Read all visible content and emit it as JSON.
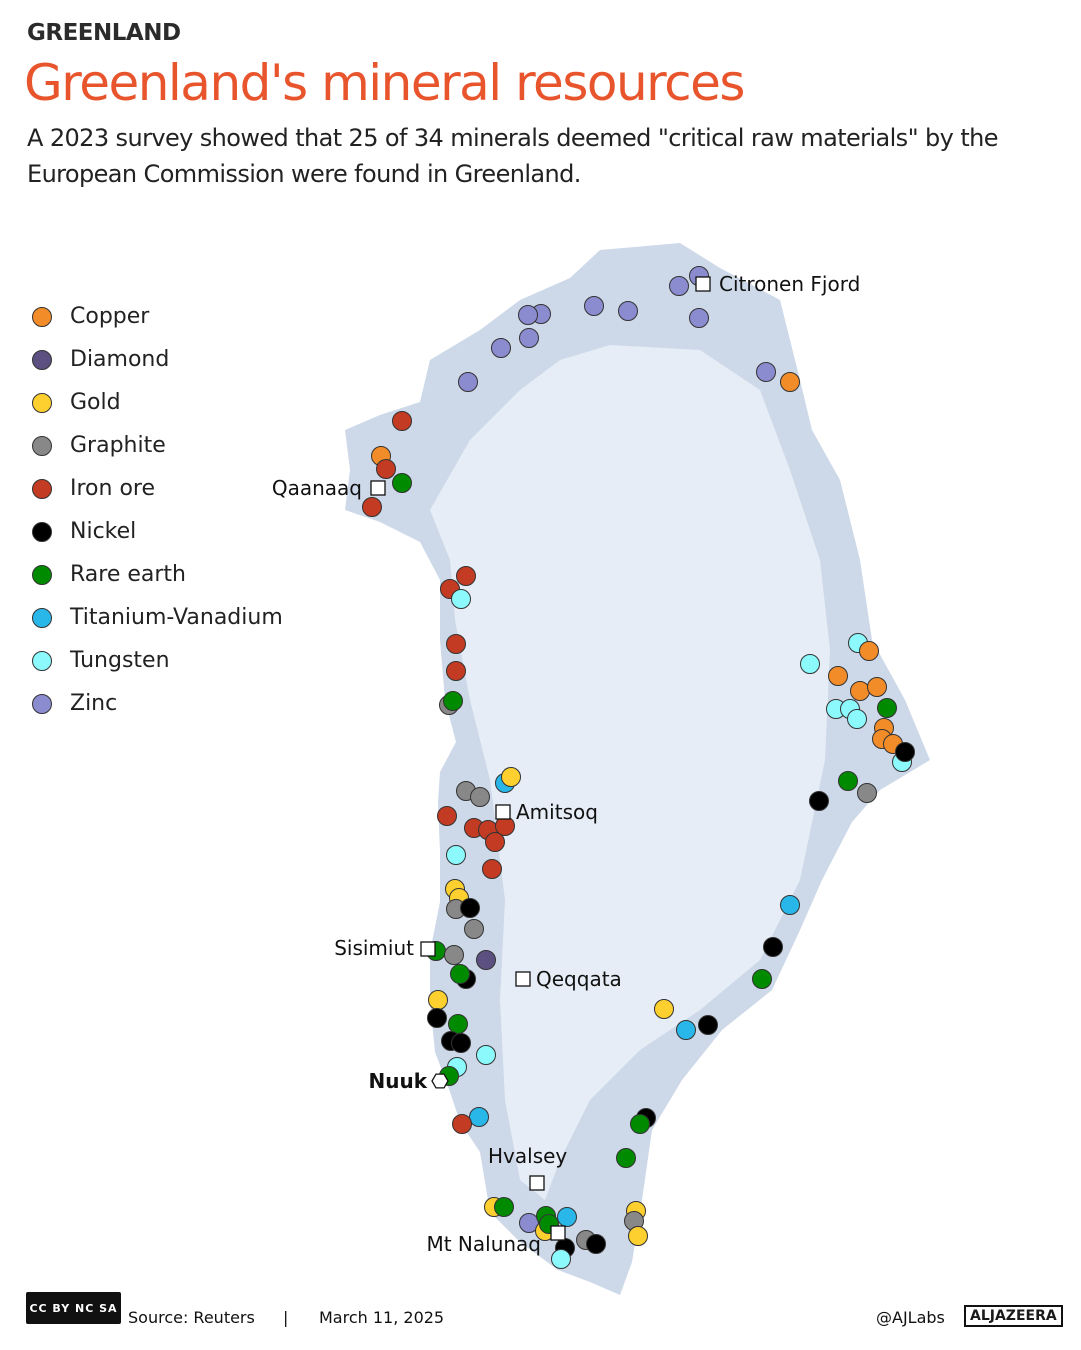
{
  "header": {
    "kicker": "GREENLAND",
    "title": "Greenland's mineral resources",
    "subtitle": "A 2023 survey showed that 25 of 34 minerals deemed \"critical raw materials\" by the European Commission were found in Greenland."
  },
  "legend": [
    {
      "label": "Copper",
      "color": "#f28c28"
    },
    {
      "label": "Diamond",
      "color": "#5c5080"
    },
    {
      "label": "Gold",
      "color": "#fdd02f"
    },
    {
      "label": "Graphite",
      "color": "#888888"
    },
    {
      "label": "Iron ore",
      "color": "#c23b22"
    },
    {
      "label": "Nickel",
      "color": "#000000"
    },
    {
      "label": "Rare earth",
      "color": "#008a00"
    },
    {
      "label": "Titanium-Vanadium",
      "color": "#29b6e8"
    },
    {
      "label": "Tungsten",
      "color": "#8cfafc"
    },
    {
      "label": "Zinc",
      "color": "#8b8bd0"
    }
  ],
  "places": [
    "Citronen Fjord",
    "Qaanaaq",
    "Amitsoq",
    "Sisimiut",
    "Qeqqata",
    "Nuuk",
    "Hvalsey",
    "Mt Nalunaq"
  ],
  "colors": {
    "land": "#cdd8e8",
    "ice": "#e6edf6",
    "title": "#e8552d"
  },
  "footer": {
    "license": "CC BY NC SA",
    "source": "Source:  Reuters",
    "separator": "|",
    "date": "March 11, 2025",
    "handle": "@AJLabs",
    "brand": "ALJAZEERA"
  }
}
